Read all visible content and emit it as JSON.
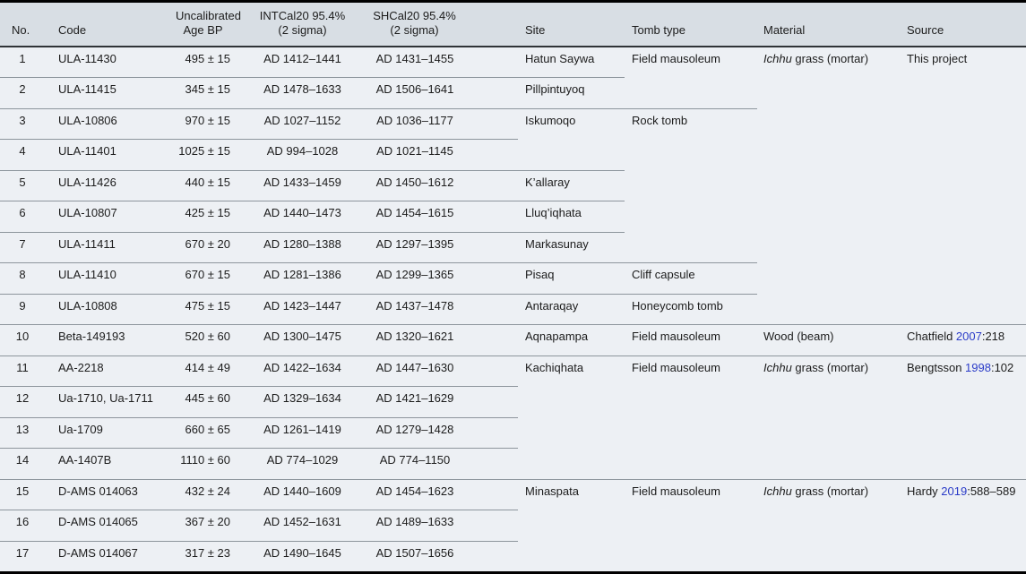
{
  "colors": {
    "body_bg": "#edf0f4",
    "header_bg": "#d8dee4",
    "row_line": "#8d959c",
    "link_blue": "#2b3cc8",
    "border_black": "#000000",
    "text": "#1c1c1c"
  },
  "table": {
    "columns": [
      {
        "key": "no",
        "lines": [
          "No."
        ]
      },
      {
        "key": "code",
        "lines": [
          "Code"
        ]
      },
      {
        "key": "age",
        "lines": [
          "Uncalibrated",
          "Age BP"
        ]
      },
      {
        "key": "intcal",
        "lines": [
          "INTCal20 95.4%",
          "(2 sigma)"
        ]
      },
      {
        "key": "shcal",
        "lines": [
          "SHCal20 95.4%",
          "(2 sigma)"
        ]
      },
      {
        "key": "site",
        "lines": [
          "Site"
        ]
      },
      {
        "key": "tomb",
        "lines": [
          "Tomb type"
        ]
      },
      {
        "key": "material",
        "lines": [
          "Material"
        ]
      },
      {
        "key": "source",
        "lines": [
          "Source"
        ]
      }
    ],
    "rows": [
      {
        "no": "1",
        "code": "ULA-11430",
        "age": "495 ± 15",
        "intcal": "AD 1412–1441",
        "shcal": "AD 1431–1455",
        "site": {
          "text": "Hatun Saywa",
          "span": 1
        },
        "tomb": {
          "text": "Field mausoleum",
          "span": 2
        },
        "material": {
          "italic": "Ichhu",
          "rest": " grass (mortar)",
          "span": 9
        },
        "source": {
          "pre": "This project",
          "year": "",
          "post": "",
          "span": 9
        }
      },
      {
        "no": "2",
        "code": "ULA-11415",
        "age": "345 ± 15",
        "intcal": "AD 1478–1633",
        "shcal": "AD 1506–1641",
        "site": {
          "text": "Pillpintuyoq",
          "span": 1
        }
      },
      {
        "no": "3",
        "code": "ULA-10806",
        "age": "970 ± 15",
        "intcal": "AD 1027–1152",
        "shcal": "AD 1036–1177",
        "site": {
          "text": "Iskumoqo",
          "span": 2
        },
        "tomb": {
          "text": "Rock tomb",
          "span": 5
        }
      },
      {
        "no": "4",
        "code": "ULA-11401",
        "age": "1025 ± 15",
        "intcal": "AD 994–1028",
        "shcal": "AD 1021–1145"
      },
      {
        "no": "5",
        "code": "ULA-11426",
        "age": "440 ± 15",
        "intcal": "AD 1433–1459",
        "shcal": "AD 1450–1612",
        "site": {
          "text": "K’allaray",
          "span": 1
        }
      },
      {
        "no": "6",
        "code": "ULA-10807",
        "age": "425 ± 15",
        "intcal": "AD 1440–1473",
        "shcal": "AD 1454–1615",
        "site": {
          "text": "Lluq’iqhata",
          "span": 1
        }
      },
      {
        "no": "7",
        "code": "ULA-11411",
        "age": "670 ± 20",
        "intcal": "AD 1280–1388",
        "shcal": "AD 1297–1395",
        "site": {
          "text": "Markasunay",
          "span": 1
        }
      },
      {
        "no": "8",
        "code": "ULA-11410",
        "age": "670 ± 15",
        "intcal": "AD 1281–1386",
        "shcal": "AD 1299–1365",
        "site": {
          "text": "Pisaq",
          "span": 1
        },
        "tomb": {
          "text": "Cliff capsule",
          "span": 1
        }
      },
      {
        "no": "9",
        "code": "ULA-10808",
        "age": "475 ± 15",
        "intcal": "AD 1423–1447",
        "shcal": "AD 1437–1478",
        "site": {
          "text": "Antaraqay",
          "span": 1
        },
        "tomb": {
          "text": "Honeycomb tomb",
          "span": 1
        }
      },
      {
        "no": "10",
        "code": "Beta-149193",
        "age": "520 ± 60",
        "intcal": "AD 1300–1475",
        "shcal": "AD 1320–1621",
        "site": {
          "text": "Aqnapampa",
          "span": 1
        },
        "tomb": {
          "text": "Field mausoleum",
          "span": 1
        },
        "material": {
          "italic": "",
          "rest": "Wood (beam)",
          "span": 1
        },
        "source": {
          "pre": "Chatfield ",
          "year": "2007",
          "post": ":218",
          "span": 1
        }
      },
      {
        "no": "11",
        "code": "AA-2218",
        "age": "414 ± 49",
        "intcal": "AD 1422–1634",
        "shcal": "AD 1447–1630",
        "site": {
          "text": "Kachiqhata",
          "span": 4
        },
        "tomb": {
          "text": "Field mausoleum",
          "span": 4
        },
        "material": {
          "italic": "Ichhu",
          "rest": " grass (mortar)",
          "span": 4
        },
        "source": {
          "pre": "Bengtsson ",
          "year": "1998",
          "post": ":102",
          "span": 4
        }
      },
      {
        "no": "12",
        "code": "Ua-1710, Ua-1711",
        "age": "445 ± 60",
        "intcal": "AD 1329–1634",
        "shcal": "AD 1421–1629"
      },
      {
        "no": "13",
        "code": "Ua-1709",
        "age": "660 ± 65",
        "intcal": "AD 1261–1419",
        "shcal": "AD 1279–1428"
      },
      {
        "no": "14",
        "code": "AA-1407B",
        "age": "1110 ± 60",
        "intcal": "AD 774–1029",
        "shcal": "AD 774–1150"
      },
      {
        "no": "15",
        "code": "D-AMS 014063",
        "age": "432 ± 24",
        "intcal": "AD 1440–1609",
        "shcal": "AD 1454–1623",
        "site": {
          "text": "Minaspata",
          "span": 3
        },
        "tomb": {
          "text": "Field mausoleum",
          "span": 3
        },
        "material": {
          "italic": "Ichhu",
          "rest": " grass (mortar)",
          "span": 3
        },
        "source": {
          "pre": "Hardy ",
          "year": "2019",
          "post": ":588–589",
          "span": 3
        }
      },
      {
        "no": "16",
        "code": "D-AMS 014065",
        "age": "367 ± 20",
        "intcal": "AD 1452–1631",
        "shcal": "AD 1489–1633"
      },
      {
        "no": "17",
        "code": "D-AMS 014067",
        "age": "317 ± 23",
        "intcal": "AD 1490–1645",
        "shcal": "AD 1507–1656"
      }
    ]
  }
}
